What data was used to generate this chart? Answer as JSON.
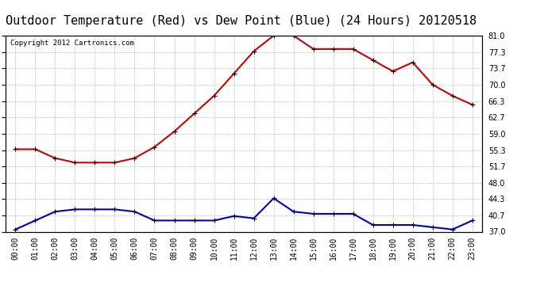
{
  "title": "Outdoor Temperature (Red) vs Dew Point (Blue) (24 Hours) 20120518",
  "copyright": "Copyright 2012 Cartronics.com",
  "hours": [
    "00:00",
    "01:00",
    "02:00",
    "03:00",
    "04:00",
    "05:00",
    "06:00",
    "07:00",
    "08:00",
    "09:00",
    "10:00",
    "11:00",
    "12:00",
    "13:00",
    "14:00",
    "15:00",
    "16:00",
    "17:00",
    "18:00",
    "19:00",
    "20:00",
    "21:00",
    "22:00",
    "23:00"
  ],
  "temperature": [
    55.5,
    55.5,
    53.5,
    52.5,
    52.5,
    52.5,
    53.5,
    56.0,
    59.5,
    63.5,
    67.5,
    72.5,
    77.5,
    81.0,
    81.0,
    78.0,
    78.0,
    78.0,
    75.5,
    73.0,
    75.0,
    70.0,
    67.5,
    65.5
  ],
  "dew_point": [
    37.5,
    39.5,
    41.5,
    42.0,
    42.0,
    42.0,
    41.5,
    39.5,
    39.5,
    39.5,
    39.5,
    40.5,
    40.0,
    44.5,
    41.5,
    41.0,
    41.0,
    41.0,
    38.5,
    38.5,
    38.5,
    38.0,
    37.5,
    39.5
  ],
  "temp_color": "#cc0000",
  "dew_color": "#0000cc",
  "bg_color": "#ffffff",
  "plot_bg_color": "#ffffff",
  "grid_color": "#c0c0c0",
  "ylim_min": 37.0,
  "ylim_max": 81.0,
  "yticks": [
    37.0,
    40.7,
    44.3,
    48.0,
    51.7,
    55.3,
    59.0,
    62.7,
    66.3,
    70.0,
    73.7,
    77.3,
    81.0
  ],
  "title_fontsize": 11,
  "tick_fontsize": 7,
  "copyright_fontsize": 6.5,
  "marker": "+",
  "marker_size": 5,
  "linewidth": 1.5
}
